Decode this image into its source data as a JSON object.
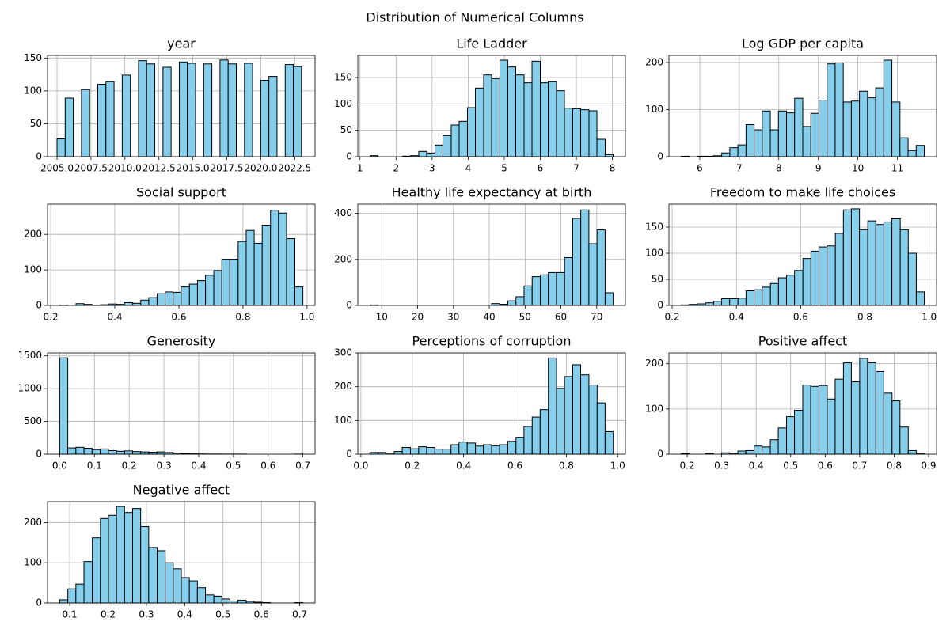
{
  "title": "Distribution of Numerical Columns",
  "chart_data": [
    {
      "type": "histogram",
      "title": "year",
      "color": "#87ceeb",
      "edgecolor": "#000000",
      "grid": true,
      "bins": [
        2005,
        2005.6,
        2006.2,
        2006.8,
        2007.4,
        2008,
        2008.6,
        2009.2,
        2009.8,
        2010.4,
        2011,
        2011.6,
        2012.2,
        2012.8,
        2013.4,
        2014,
        2014.6,
        2015.2,
        2015.8,
        2016.4,
        2017,
        2017.6,
        2018.2,
        2018.8,
        2019.4,
        2020,
        2020.6,
        2021.2,
        2021.8,
        2022.4,
        2023
      ],
      "counts": [
        27,
        89,
        0,
        102,
        0,
        110,
        114,
        0,
        124,
        0,
        146,
        141,
        0,
        136,
        0,
        144,
        142,
        0,
        141,
        0,
        147,
        141,
        0,
        142,
        0,
        116,
        122,
        0,
        140,
        137
      ],
      "xlim": [
        2004.3,
        2024.0
      ],
      "ylim": [
        0,
        154
      ],
      "xticks": [
        {
          "value": 2005,
          "label": "2005.0"
        },
        {
          "value": 2007.5,
          "label": "2007.5"
        },
        {
          "value": 2010,
          "label": "2010.0"
        },
        {
          "value": 2012.5,
          "label": "2012.5"
        },
        {
          "value": 2015,
          "label": "2015.0"
        },
        {
          "value": 2017.5,
          "label": "2017.5"
        },
        {
          "value": 2020,
          "label": "2020.0"
        },
        {
          "value": 2022.5,
          "label": "2022.5"
        }
      ],
      "yticks": [
        0,
        50,
        100,
        150
      ]
    },
    {
      "type": "histogram",
      "title": "Life Ladder",
      "color": "#87ceeb",
      "edgecolor": "#000000",
      "grid": true,
      "bins": [
        1.28,
        1.5,
        1.73,
        1.95,
        2.18,
        2.4,
        2.63,
        2.85,
        3.08,
        3.3,
        3.53,
        3.75,
        3.98,
        4.2,
        4.43,
        4.65,
        4.88,
        5.1,
        5.32,
        5.55,
        5.77,
        6.0,
        6.22,
        6.45,
        6.67,
        6.9,
        7.12,
        7.35,
        7.57,
        7.8,
        8.02
      ],
      "counts": [
        2,
        0,
        0,
        0,
        1,
        2,
        10,
        7,
        22,
        40,
        60,
        67,
        93,
        130,
        155,
        148,
        183,
        170,
        155,
        140,
        181,
        140,
        142,
        125,
        92,
        91,
        89,
        87,
        33,
        4
      ],
      "xlim": [
        0.94,
        8.36
      ],
      "ylim": [
        0,
        192
      ],
      "xticks": [
        1,
        2,
        3,
        4,
        5,
        6,
        7,
        8
      ],
      "yticks": [
        0,
        50,
        100,
        150
      ]
    },
    {
      "type": "histogram",
      "title": "Log GDP per capita",
      "color": "#87ceeb",
      "edgecolor": "#000000",
      "grid": true,
      "bins": [
        5.53,
        5.735,
        5.94,
        6.145,
        6.35,
        6.555,
        6.76,
        6.965,
        7.17,
        7.375,
        7.58,
        7.785,
        7.99,
        8.195,
        8.4,
        8.605,
        8.81,
        9.015,
        9.22,
        9.425,
        9.63,
        9.835,
        10.04,
        10.245,
        10.45,
        10.655,
        10.86,
        11.065,
        11.27,
        11.475,
        11.68
      ],
      "counts": [
        1,
        0,
        1,
        1,
        2,
        8,
        19,
        25,
        68,
        57,
        97,
        57,
        97,
        93,
        124,
        64,
        92,
        120,
        197,
        199,
        116,
        118,
        139,
        125,
        146,
        205,
        116,
        40,
        13,
        24
      ],
      "xlim": [
        5.22,
        11.99
      ],
      "ylim": [
        0,
        215
      ],
      "xticks": [
        6,
        7,
        8,
        9,
        10,
        11
      ],
      "yticks": [
        0,
        100,
        200
      ]
    },
    {
      "type": "histogram",
      "title": "Social support",
      "color": "#87ceeb",
      "edgecolor": "#000000",
      "grid": true,
      "bins": [
        0.228,
        0.253,
        0.279,
        0.304,
        0.329,
        0.355,
        0.38,
        0.405,
        0.43,
        0.456,
        0.481,
        0.506,
        0.532,
        0.557,
        0.582,
        0.607,
        0.633,
        0.658,
        0.683,
        0.709,
        0.734,
        0.759,
        0.785,
        0.81,
        0.835,
        0.86,
        0.886,
        0.911,
        0.936,
        0.962,
        0.987
      ],
      "counts": [
        1,
        0,
        5,
        3,
        1,
        2,
        4,
        3,
        8,
        6,
        15,
        22,
        33,
        38,
        37,
        52,
        60,
        70,
        85,
        98,
        130,
        130,
        180,
        211,
        175,
        226,
        268,
        260,
        188,
        52
      ],
      "xlim": [
        0.19,
        1.025
      ],
      "ylim": [
        0,
        285
      ],
      "xticks": [
        0.2,
        0.4,
        0.6,
        0.8,
        {
          "value": 1,
          "label": "1.0"
        }
      ],
      "yticks": [
        0,
        100,
        200
      ]
    },
    {
      "type": "histogram",
      "title": "Healthy life expectancy at birth",
      "color": "#87ceeb",
      "edgecolor": "#000000",
      "grid": true,
      "bins": [
        6.72,
        8.98,
        11.25,
        13.51,
        15.77,
        18.03,
        20.3,
        22.56,
        24.82,
        27.08,
        29.35,
        31.61,
        33.87,
        36.14,
        38.4,
        40.66,
        42.92,
        45.19,
        47.45,
        49.71,
        51.97,
        54.24,
        56.5,
        58.76,
        61.03,
        63.29,
        65.55,
        67.81,
        70.08,
        72.34,
        74.6
      ],
      "counts": [
        2,
        0,
        0,
        0,
        0,
        0,
        0,
        0,
        0,
        0,
        0,
        0,
        0,
        0,
        0,
        8,
        5,
        20,
        38,
        85,
        125,
        133,
        143,
        143,
        208,
        378,
        415,
        268,
        328,
        55
      ],
      "xlim": [
        3.3,
        78.0
      ],
      "ylim": [
        0,
        440
      ],
      "xticks": [
        10,
        20,
        30,
        40,
        50,
        60,
        70
      ],
      "yticks": [
        0,
        200,
        400
      ]
    },
    {
      "type": "histogram",
      "title": "Freedom to make life choices",
      "color": "#87ceeb",
      "edgecolor": "#000000",
      "grid": true,
      "bins": [
        0.228,
        0.253,
        0.278,
        0.304,
        0.329,
        0.354,
        0.379,
        0.405,
        0.43,
        0.455,
        0.48,
        0.506,
        0.531,
        0.556,
        0.581,
        0.607,
        0.632,
        0.657,
        0.682,
        0.708,
        0.733,
        0.758,
        0.783,
        0.809,
        0.834,
        0.859,
        0.884,
        0.91,
        0.935,
        0.96,
        0.985
      ],
      "counts": [
        1,
        2,
        3,
        5,
        8,
        13,
        13,
        14,
        28,
        30,
        35,
        42,
        53,
        58,
        67,
        90,
        104,
        112,
        114,
        138,
        183,
        185,
        145,
        162,
        155,
        160,
        166,
        145,
        100,
        26
      ],
      "xlim": [
        0.19,
        1.023
      ],
      "ylim": [
        0,
        194
      ],
      "xticks": [
        0.2,
        0.4,
        0.6,
        0.8,
        {
          "value": 1,
          "label": "1.0"
        }
      ],
      "yticks": [
        0,
        50,
        100,
        150
      ]
    },
    {
      "type": "histogram",
      "title": "Generosity",
      "color": "#87ceeb",
      "edgecolor": "#000000",
      "grid": true,
      "bins": [
        0,
        0.0233,
        0.0467,
        0.07,
        0.0933,
        0.1167,
        0.14,
        0.1633,
        0.1867,
        0.21,
        0.2333,
        0.2567,
        0.28,
        0.3033,
        0.3267,
        0.35,
        0.3733,
        0.3967,
        0.42,
        0.4433,
        0.4667,
        0.49,
        0.5133,
        0.5367,
        0.56,
        0.5833,
        0.6067,
        0.63,
        0.6533,
        0.6767,
        0.7
      ],
      "counts": [
        1470,
        95,
        105,
        90,
        70,
        80,
        55,
        45,
        50,
        40,
        35,
        30,
        35,
        25,
        15,
        8,
        5,
        3,
        2,
        2,
        1,
        1,
        1,
        0,
        0,
        0,
        0,
        0,
        0,
        1
      ],
      "xlim": [
        -0.035,
        0.735
      ],
      "ylim": [
        0,
        1545
      ],
      "xticks": [
        {
          "value": 0,
          "label": "0.0"
        },
        0.1,
        0.2,
        0.3,
        0.4,
        0.5,
        0.6,
        0.7
      ],
      "yticks": [
        0,
        500,
        1000,
        1500
      ]
    },
    {
      "type": "histogram",
      "title": "Perceptions of corruption",
      "color": "#87ceeb",
      "edgecolor": "#000000",
      "grid": true,
      "bins": [
        0.035,
        0.067,
        0.098,
        0.13,
        0.161,
        0.193,
        0.225,
        0.256,
        0.288,
        0.319,
        0.351,
        0.382,
        0.414,
        0.446,
        0.477,
        0.509,
        0.54,
        0.572,
        0.604,
        0.635,
        0.667,
        0.698,
        0.73,
        0.762,
        0.793,
        0.825,
        0.856,
        0.888,
        0.92,
        0.951,
        0.983
      ],
      "counts": [
        5,
        5,
        3,
        8,
        20,
        16,
        22,
        20,
        15,
        15,
        28,
        36,
        33,
        24,
        28,
        25,
        28,
        38,
        50,
        82,
        110,
        132,
        285,
        195,
        230,
        265,
        235,
        205,
        152,
        67
      ],
      "xlim": [
        -0.012,
        1.03
      ],
      "ylim": [
        0,
        300
      ],
      "xticks": [
        {
          "value": 0,
          "label": "0.0"
        },
        0.2,
        0.4,
        0.6,
        0.8,
        {
          "value": 1,
          "label": "1.0"
        }
      ],
      "yticks": [
        0,
        100,
        200,
        300
      ]
    },
    {
      "type": "histogram",
      "title": "Positive affect",
      "color": "#87ceeb",
      "edgecolor": "#000000",
      "grid": true,
      "bins": [
        0.182,
        0.206,
        0.229,
        0.253,
        0.276,
        0.3,
        0.323,
        0.347,
        0.37,
        0.394,
        0.417,
        0.441,
        0.464,
        0.488,
        0.511,
        0.535,
        0.558,
        0.582,
        0.606,
        0.629,
        0.653,
        0.676,
        0.7,
        0.723,
        0.747,
        0.77,
        0.794,
        0.817,
        0.841,
        0.864,
        0.888
      ],
      "counts": [
        1,
        0,
        0,
        2,
        0,
        3,
        2,
        7,
        8,
        18,
        16,
        32,
        58,
        83,
        97,
        153,
        150,
        152,
        122,
        166,
        202,
        160,
        212,
        202,
        183,
        135,
        118,
        60,
        8,
        2
      ],
      "xlim": [
        0.147,
        0.923
      ],
      "ylim": [
        0,
        224
      ],
      "xticks": [
        0.2,
        0.3,
        0.4,
        0.5,
        0.6,
        0.7,
        0.8,
        0.9
      ],
      "yticks": [
        0,
        100,
        200
      ]
    },
    {
      "type": "histogram",
      "title": "Negative affect",
      "color": "#87ceeb",
      "edgecolor": "#000000",
      "grid": true,
      "bins": [
        0.074,
        0.095,
        0.116,
        0.137,
        0.159,
        0.18,
        0.201,
        0.222,
        0.243,
        0.264,
        0.285,
        0.306,
        0.328,
        0.349,
        0.37,
        0.391,
        0.412,
        0.433,
        0.454,
        0.476,
        0.497,
        0.518,
        0.539,
        0.56,
        0.581,
        0.602,
        0.623,
        0.645,
        0.666,
        0.687,
        0.708
      ],
      "counts": [
        8,
        35,
        47,
        103,
        162,
        210,
        218,
        240,
        225,
        235,
        190,
        138,
        130,
        100,
        85,
        63,
        55,
        38,
        20,
        17,
        10,
        5,
        7,
        4,
        2,
        1,
        0,
        0,
        0,
        1
      ],
      "xlim": [
        0.042,
        0.74
      ],
      "ylim": [
        0,
        252
      ],
      "xticks": [
        0.1,
        0.2,
        0.3,
        0.4,
        0.5,
        0.6,
        0.7
      ],
      "yticks": [
        0,
        100,
        200
      ]
    }
  ]
}
